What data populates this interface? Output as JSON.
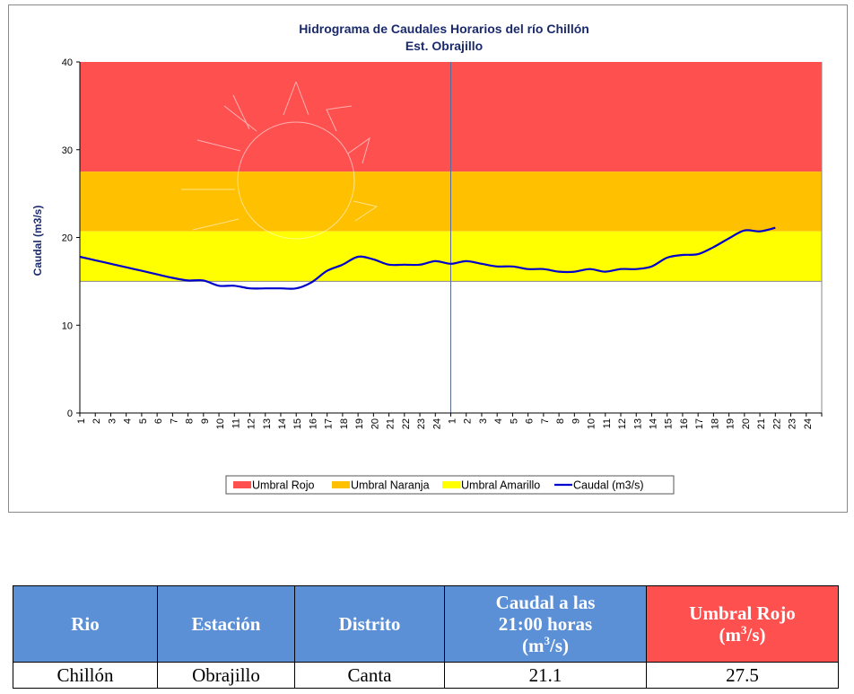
{
  "chart_data": {
    "type": "line",
    "title": "Hidrograma de Caudales Horarios del río Chillón",
    "subtitle": "Est. Obrajillo",
    "ylabel": "Caudal  (m3/s)",
    "ylim": [
      0,
      40
    ],
    "yticks": [
      "0",
      "10",
      "20",
      "30",
      "40"
    ],
    "xtick_labels": [
      "1",
      "2",
      "3",
      "4",
      "5",
      "6",
      "7",
      "8",
      "9",
      "10",
      "11",
      "12",
      "13",
      "14",
      "15",
      "16",
      "17",
      "18",
      "19",
      "20",
      "21",
      "22",
      "23",
      "24",
      "1",
      "2",
      "3",
      "4",
      "5",
      "6",
      "7",
      "8",
      "9",
      "10",
      "11",
      "12",
      "13",
      "14",
      "15",
      "16",
      "17",
      "18",
      "19",
      "20",
      "21",
      "22",
      "23",
      "24"
    ],
    "bands": [
      {
        "name": "Umbral Rojo",
        "from": 27.5,
        "to": 40,
        "color": "#ff5050"
      },
      {
        "name": "Umbral Naranja",
        "from": 20.7,
        "to": 27.5,
        "color": "#ffc000"
      },
      {
        "name": "Umbral Amarillo",
        "from": 15.0,
        "to": 20.7,
        "color": "#ffff00"
      }
    ],
    "series": [
      {
        "name": "Caudal (m3/s)",
        "color": "#0000cc",
        "values": [
          17.8,
          17.4,
          17.0,
          16.6,
          16.2,
          15.8,
          15.4,
          15.1,
          15.1,
          14.5,
          14.5,
          14.2,
          14.2,
          14.2,
          14.2,
          14.9,
          16.2,
          16.9,
          17.8,
          17.5,
          16.9,
          16.9,
          16.9,
          17.3,
          17.0,
          17.3,
          17.0,
          16.7,
          16.7,
          16.4,
          16.4,
          16.1,
          16.1,
          16.4,
          16.1,
          16.4,
          16.4,
          16.7,
          17.7,
          18.0,
          18.1,
          18.9,
          19.9,
          20.8,
          20.7,
          21.1
        ]
      }
    ],
    "legend_position": "bottom",
    "grid": false
  },
  "legend": [
    {
      "label": "Umbral Rojo",
      "color": "#ff5050",
      "kind": "box"
    },
    {
      "label": "Umbral Naranja",
      "color": "#ffc000",
      "kind": "box"
    },
    {
      "label": "Umbral Amarillo",
      "color": "#ffff00",
      "kind": "box"
    },
    {
      "label": "Caudal (m3/s)",
      "color": "#0000cc",
      "kind": "line"
    }
  ],
  "table": {
    "headers": {
      "rio": "Rio",
      "estacion": "Estación",
      "distrito": "Distrito",
      "caudal_line1": "Caudal a las",
      "caudal_line2": "21:00 horas",
      "caudal_unit_pre": "(m",
      "caudal_unit_sup": "3",
      "caudal_unit_post": "/s)",
      "umbral_line1": "Umbral Rojo",
      "umbral_unit_pre": "(m",
      "umbral_unit_sup": "3",
      "umbral_unit_post": "/s)"
    },
    "row": {
      "rio": "Chillón",
      "estacion": "Obrajillo",
      "distrito": "Canta",
      "caudal": "21.1",
      "umbral": "27.5"
    }
  }
}
